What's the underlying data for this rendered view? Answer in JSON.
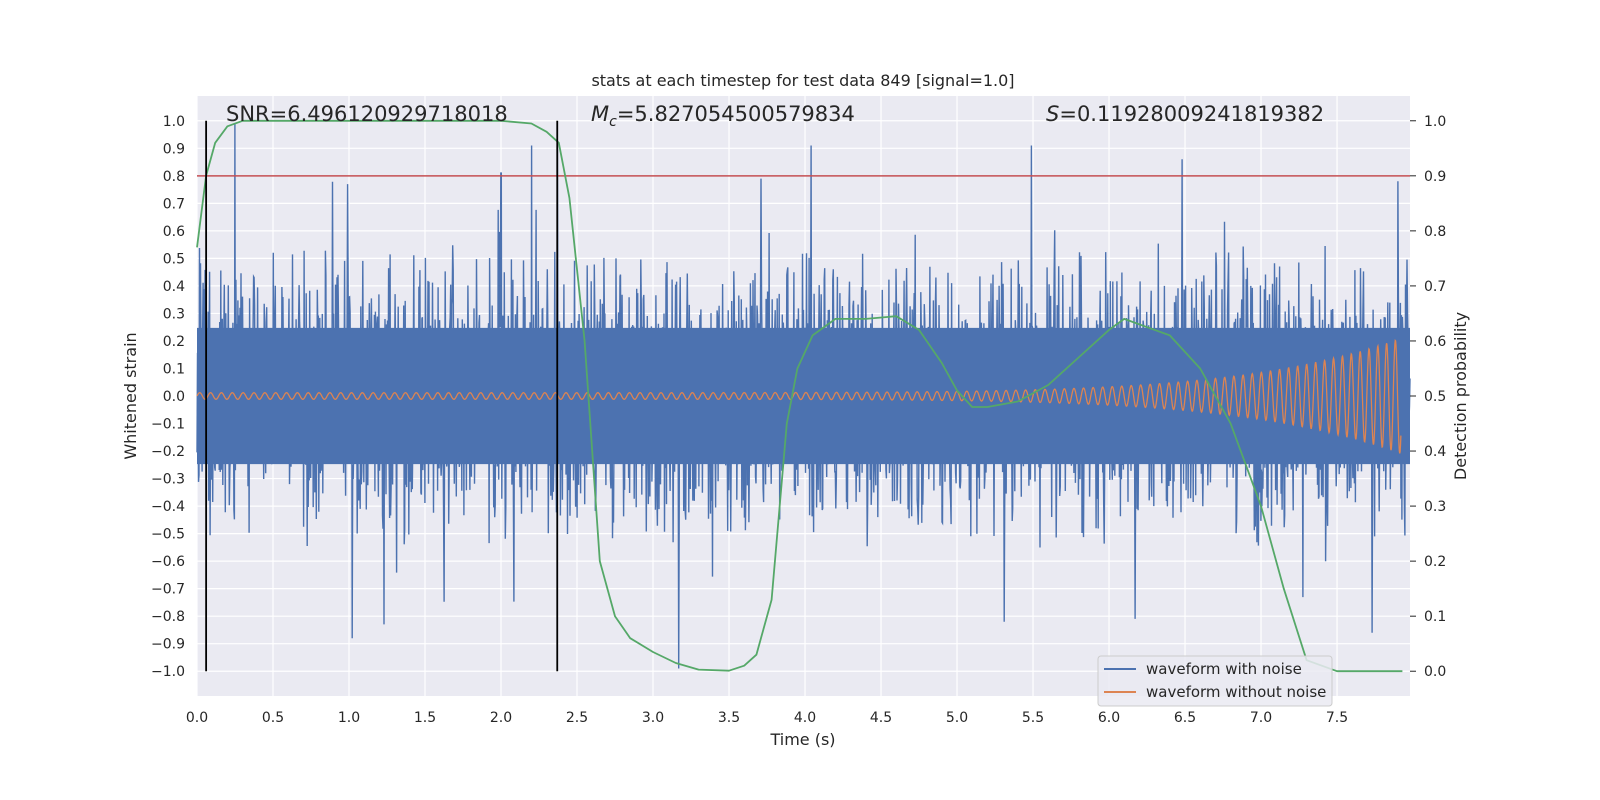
{
  "chart_data": {
    "type": "line",
    "title": "stats at each timestep for test data 849 [signal=1.0]",
    "xlabel": "Time (s)",
    "ylabel": "Whitened strain",
    "y2label": "Detection probability",
    "xlim": [
      0.0,
      7.98
    ],
    "ylim": [
      -1.09,
      1.09
    ],
    "y2lim": [
      -0.045,
      1.045
    ],
    "x_ticks": [
      "0.0",
      "0.5",
      "1.0",
      "1.5",
      "2.0",
      "2.5",
      "3.0",
      "3.5",
      "4.0",
      "4.5",
      "5.0",
      "5.5",
      "6.0",
      "6.5",
      "7.0",
      "7.5"
    ],
    "y_ticks": [
      "1.0",
      "0.9",
      "0.8",
      "0.7",
      "0.6",
      "0.5",
      "0.4",
      "0.3",
      "0.2",
      "0.1",
      "0.0",
      "−0.1",
      "−0.2",
      "−0.3",
      "−0.4",
      "−0.5",
      "−0.6",
      "−0.7",
      "−0.8",
      "−0.9",
      "−1.0"
    ],
    "y2_ticks": [
      "1.0",
      "0.9",
      "0.8",
      "0.7",
      "0.6",
      "0.5",
      "0.4",
      "0.3",
      "0.2",
      "0.1",
      "0.0"
    ],
    "annotations": {
      "snr": "SNR=6.496120929718018",
      "mc_value": "=5.827054500579834",
      "s_value": "=0.11928009241819382"
    },
    "threshold": 0.8,
    "vertical_markers": [
      0.06,
      2.37
    ],
    "series": [
      {
        "name": "waveform with noise",
        "color": "#4c72b0",
        "envelope": {
          "typical": 0.45,
          "spikes": [
            [
              0.25,
              0.99
            ],
            [
              0.99,
              0.77
            ],
            [
              2.0,
              0.81
            ],
            [
              2.2,
              0.91
            ],
            [
              2.37,
              0.92
            ],
            [
              3.17,
              -0.99
            ],
            [
              4.04,
              0.91
            ],
            [
              5.49,
              0.91
            ],
            [
              6.48,
              0.86
            ],
            [
              1.02,
              -0.88
            ],
            [
              1.23,
              -0.83
            ],
            [
              3.71,
              0.79
            ],
            [
              5.31,
              -0.82
            ],
            [
              6.17,
              -0.81
            ],
            [
              7.73,
              -0.86
            ],
            [
              7.9,
              0.78
            ]
          ]
        }
      },
      {
        "name": "waveform without noise",
        "color": "#dd8452",
        "x_end": 7.92,
        "amplitude_start": 0.012,
        "amplitude_peak": 0.21
      },
      {
        "name": "detection probability",
        "color": "#55a868",
        "x": [
          0.0,
          0.06,
          0.12,
          0.2,
          0.3,
          0.5,
          1.0,
          1.5,
          2.0,
          2.2,
          2.3,
          2.38,
          2.45,
          2.55,
          2.65,
          2.75,
          2.85,
          3.0,
          3.15,
          3.3,
          3.5,
          3.6,
          3.68,
          3.78,
          3.88,
          3.95,
          4.05,
          4.2,
          4.4,
          4.6,
          4.75,
          4.9,
          5.0,
          5.1,
          5.2,
          5.4,
          5.6,
          5.8,
          6.0,
          6.1,
          6.2,
          6.4,
          6.6,
          6.8,
          7.0,
          7.15,
          7.3,
          7.5,
          7.7,
          7.93
        ],
        "y": [
          0.77,
          0.9,
          0.96,
          0.99,
          1.0,
          1.0,
          1.0,
          1.0,
          1.0,
          0.995,
          0.98,
          0.96,
          0.86,
          0.6,
          0.2,
          0.1,
          0.06,
          0.035,
          0.015,
          0.003,
          0.001,
          0.01,
          0.03,
          0.13,
          0.45,
          0.55,
          0.61,
          0.64,
          0.64,
          0.645,
          0.62,
          0.56,
          0.51,
          0.48,
          0.48,
          0.49,
          0.52,
          0.57,
          0.62,
          0.64,
          0.63,
          0.61,
          0.55,
          0.45,
          0.3,
          0.15,
          0.02,
          0.0,
          0.0,
          0.0
        ]
      }
    ],
    "legend": {
      "placement": "bottom-right",
      "entries": [
        "waveform with noise",
        "waveform without noise"
      ]
    }
  }
}
